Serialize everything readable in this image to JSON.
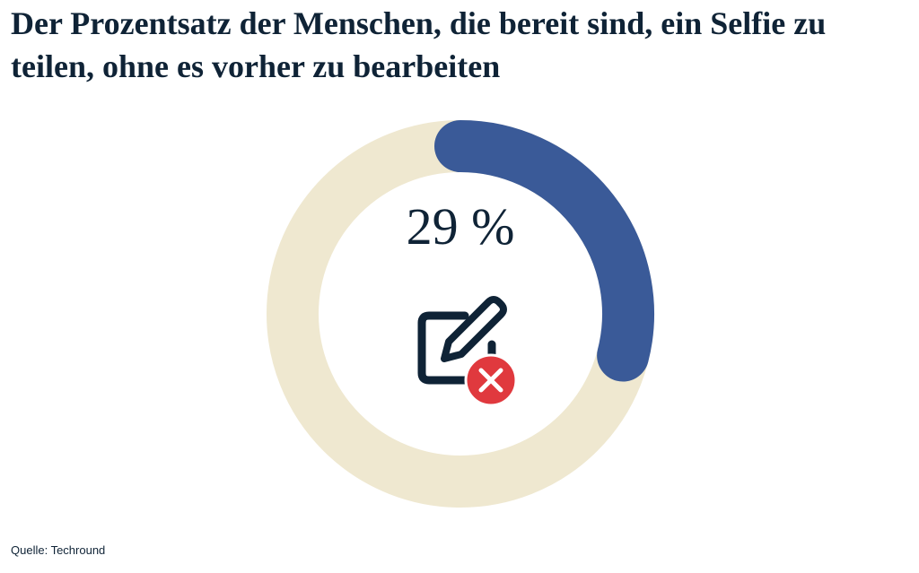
{
  "chart_data": {
    "type": "donut",
    "title": "Der Prozentsatz der Menschen, die bereit sind, ein Selfie zu teilen, ohne es vorher zu bearbeiten",
    "values": [
      29
    ],
    "value_labels": [
      "29 %"
    ],
    "color": "#3a5a98",
    "track_color": "#efe8d0",
    "source": "Quelle: Techround"
  }
}
